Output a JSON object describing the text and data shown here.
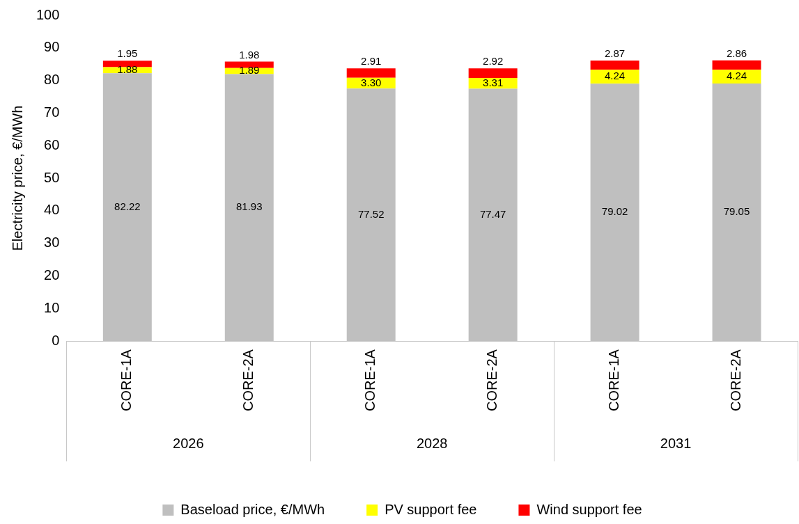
{
  "chart_data": {
    "type": "bar",
    "stacked": true,
    "ylabel": "Electricity price, €/MWh",
    "categories": [
      "CORE-1A",
      "CORE-2A",
      "CORE-1A",
      "CORE-2A",
      "CORE-1A",
      "CORE-2A"
    ],
    "series": [
      {
        "name": "Baseload price, €/MWh",
        "color": "#bfbfbf",
        "values": [
          82.22,
          81.93,
          77.52,
          77.47,
          79.02,
          79.05
        ],
        "value_labels": [
          "82.22",
          "81.93",
          "77.52",
          "77.47",
          "79.02",
          "79.05"
        ]
      },
      {
        "name": "PV support fee",
        "color": "#ffff00",
        "values": [
          1.88,
          1.89,
          3.3,
          3.31,
          4.24,
          4.24
        ],
        "value_labels": [
          "1.88",
          "1.89",
          "3.30",
          "3.31",
          "4.24",
          "4.24"
        ]
      },
      {
        "name": "Wind support fee",
        "color": "#ff0000",
        "values": [
          1.95,
          1.98,
          2.91,
          2.92,
          2.87,
          2.86
        ],
        "value_labels": [
          "1.95",
          "1.98",
          "2.91",
          "2.92",
          "2.87",
          "2.86"
        ]
      }
    ],
    "annotations": [
      "2026",
      "2028",
      "2031"
    ],
    "ylim": [
      0,
      100
    ],
    "yticks": [
      0,
      10,
      20,
      30,
      40,
      50,
      60,
      70,
      80,
      90,
      100
    ],
    "grid": false,
    "legend": "bottom"
  }
}
